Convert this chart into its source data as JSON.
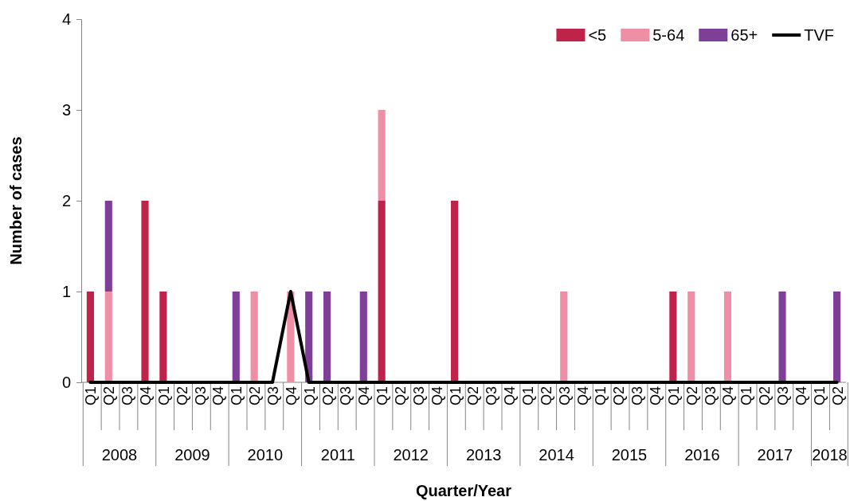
{
  "chart_data": {
    "type": "bar",
    "stacked": true,
    "xlabel": "Quarter/Year",
    "ylabel": "Number of cases",
    "categories": [
      "Q1",
      "Q2",
      "Q3",
      "Q4",
      "Q1",
      "Q2",
      "Q3",
      "Q4",
      "Q1",
      "Q2",
      "Q3",
      "Q4",
      "Q1",
      "Q2",
      "Q3",
      "Q4",
      "Q1",
      "Q2",
      "Q3",
      "Q4",
      "Q1",
      "Q2",
      "Q3",
      "Q4",
      "Q1",
      "Q2",
      "Q3",
      "Q4",
      "Q1",
      "Q2",
      "Q3",
      "Q4",
      "Q1",
      "Q2",
      "Q3",
      "Q4",
      "Q1",
      "Q2",
      "Q3",
      "Q4",
      "Q1",
      "Q2"
    ],
    "annotations": [
      "2008",
      "2009",
      "2010",
      "2011",
      "2012",
      "2013",
      "2014",
      "2015",
      "2016",
      "2017",
      "2018"
    ],
    "series": [
      {
        "name": "<5",
        "color": "#c0234a",
        "values": [
          1,
          0,
          0,
          2,
          1,
          0,
          0,
          0,
          0,
          0,
          0,
          0,
          0,
          0,
          0,
          0,
          2,
          0,
          0,
          0,
          2,
          0,
          0,
          0,
          0,
          0,
          0,
          0,
          0,
          0,
          0,
          0,
          1,
          0,
          0,
          0,
          0,
          0,
          0,
          0,
          0,
          0
        ]
      },
      {
        "name": "5-64",
        "color": "#ee8fa5",
        "values": [
          0,
          1,
          0,
          0,
          0,
          0,
          0,
          0,
          0,
          1,
          0,
          1,
          0,
          0,
          0,
          0,
          1,
          0,
          0,
          0,
          0,
          0,
          0,
          0,
          0,
          0,
          1,
          0,
          0,
          0,
          0,
          0,
          0,
          1,
          0,
          1,
          0,
          0,
          0,
          0,
          0,
          0
        ]
      },
      {
        "name": "65+",
        "color": "#7f3f98",
        "values": [
          0,
          1,
          0,
          0,
          0,
          0,
          0,
          0,
          1,
          0,
          0,
          0,
          1,
          1,
          0,
          1,
          0,
          0,
          0,
          0,
          0,
          0,
          0,
          0,
          0,
          0,
          0,
          0,
          0,
          0,
          0,
          0,
          0,
          0,
          0,
          0,
          0,
          0,
          1,
          0,
          0,
          1
        ]
      },
      {
        "name": "TVF",
        "type": "line",
        "color": "#000000",
        "values": [
          0,
          0,
          0,
          0,
          0,
          0,
          0,
          0,
          0,
          0,
          0,
          1,
          0,
          0,
          0,
          0,
          0,
          0,
          0,
          0,
          0,
          0,
          0,
          0,
          0,
          0,
          0,
          0,
          0,
          0,
          0,
          0,
          0,
          0,
          0,
          0,
          0,
          0,
          0,
          0,
          0,
          0
        ]
      }
    ],
    "ylim": [
      0,
      4
    ],
    "yticks": [
      0,
      1,
      2,
      3,
      4
    ],
    "legend": "top right",
    "marker": "none",
    "line_style": "solid"
  }
}
